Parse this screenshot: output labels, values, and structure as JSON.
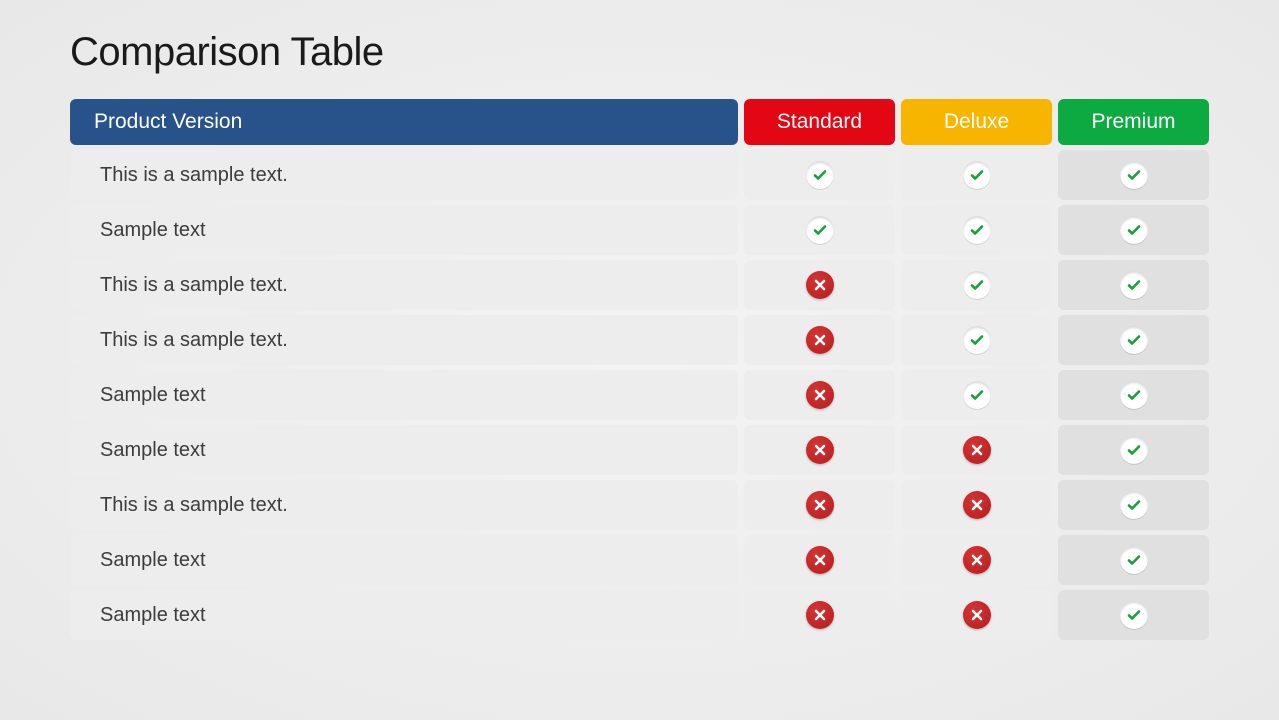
{
  "title": "Comparison Table",
  "header": {
    "feature_label": "Product Version",
    "feature_bg": "#27538a",
    "plans": [
      {
        "label": "Standard",
        "bg": "#e30613"
      },
      {
        "label": "Deluxe",
        "bg": "#f7b500"
      },
      {
        "label": "Premium",
        "bg": "#0caa41"
      }
    ]
  },
  "rows": [
    {
      "feature": "This is a sample text.",
      "values": [
        true,
        true,
        true
      ]
    },
    {
      "feature": "Sample text",
      "values": [
        true,
        true,
        true
      ]
    },
    {
      "feature": "This is a sample text.",
      "values": [
        false,
        true,
        true
      ]
    },
    {
      "feature": "This is a sample text.",
      "values": [
        false,
        true,
        true
      ]
    },
    {
      "feature": "Sample text",
      "values": [
        false,
        true,
        true
      ]
    },
    {
      "feature": "Sample text",
      "values": [
        false,
        false,
        true
      ]
    },
    {
      "feature": "This is a sample text.",
      "values": [
        false,
        false,
        true
      ]
    },
    {
      "feature": "Sample text",
      "values": [
        false,
        false,
        true
      ]
    },
    {
      "feature": "Sample text",
      "values": [
        false,
        false,
        true
      ]
    }
  ],
  "style": {
    "check_color": "#1a9e3f",
    "cross_color": "#ffffff",
    "row_bg": "#ededed",
    "row_bg_alt": "#e0e0e0"
  }
}
